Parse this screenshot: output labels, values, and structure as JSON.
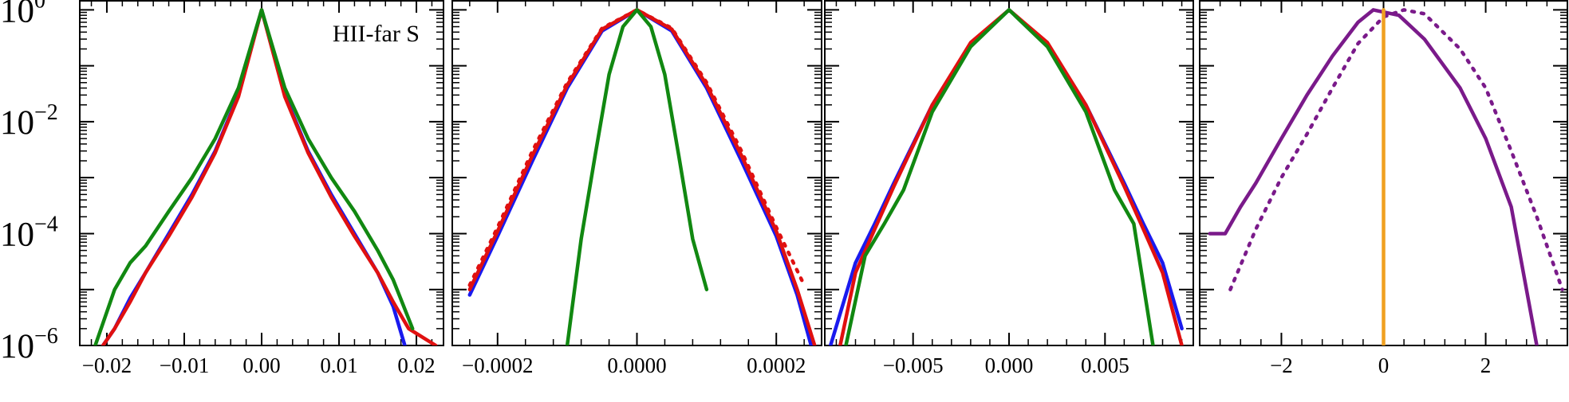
{
  "chart_data": [
    {
      "type": "line",
      "yscale": "log",
      "ylim": [
        1e-06,
        1.5
      ],
      "xlim": [
        -0.0235,
        0.0235
      ],
      "xticks": [
        -0.02,
        -0.01,
        0.0,
        0.01,
        0.02
      ],
      "xtick_labels": [
        "−0.02",
        "−0.01",
        "0.00",
        "0.01",
        "0.02"
      ],
      "ytick_labels": [
        {
          "base": "10",
          "exp": "0"
        },
        {
          "base": "10",
          "exp": "−2"
        },
        {
          "base": "10",
          "exp": "−4"
        },
        {
          "base": "10",
          "exp": "−6"
        }
      ],
      "annotation": "HII-far S",
      "series": [
        {
          "color": "#1a1aee",
          "style": "solid",
          "x": [
            -0.0205,
            -0.019,
            -0.017,
            -0.015,
            -0.012,
            -0.009,
            -0.006,
            -0.003,
            0.0,
            0.003,
            0.006,
            0.009,
            0.012,
            0.015,
            0.017,
            0.0185
          ],
          "y": [
            1e-06,
            2e-06,
            7e-06,
            2e-05,
            0.0001,
            0.0005,
            0.003,
            0.03,
            1.0,
            0.03,
            0.003,
            0.0005,
            0.0001,
            2e-05,
            5e-06,
            1e-06
          ]
        },
        {
          "color": "#e01010",
          "style": "solid",
          "x": [
            -0.0205,
            -0.019,
            -0.017,
            -0.015,
            -0.012,
            -0.009,
            -0.006,
            -0.003,
            0.0,
            0.003,
            0.006,
            0.009,
            0.012,
            0.015,
            0.017,
            0.019,
            0.0225
          ],
          "y": [
            1e-06,
            2e-06,
            6e-06,
            2e-05,
            9e-05,
            0.00045,
            0.0028,
            0.028,
            1.0,
            0.028,
            0.0028,
            0.00045,
            9e-05,
            2e-05,
            6e-06,
            2e-06,
            1e-06
          ]
        },
        {
          "color": "#118811",
          "style": "solid",
          "x": [
            -0.0215,
            -0.019,
            -0.017,
            -0.015,
            -0.012,
            -0.009,
            -0.006,
            -0.003,
            0.0,
            0.003,
            0.006,
            0.009,
            0.012,
            0.015,
            0.017,
            0.0195
          ],
          "y": [
            1e-06,
            1e-05,
            3e-05,
            6e-05,
            0.00025,
            0.001,
            0.005,
            0.04,
            1.0,
            0.04,
            0.005,
            0.001,
            0.00025,
            5e-05,
            1.5e-05,
            2e-06
          ]
        }
      ]
    },
    {
      "type": "line",
      "yscale": "log",
      "ylim": [
        1e-06,
        1.5
      ],
      "xlim": [
        -0.000265,
        0.000265
      ],
      "xticks": [
        -0.0002,
        0.0,
        0.0002
      ],
      "xtick_labels": [
        "−0.0002",
        "0.0000",
        "0.0002"
      ],
      "series": [
        {
          "color": "#1a1aee",
          "style": "solid",
          "x": [
            -0.00024,
            -0.0002,
            -0.00015,
            -0.0001,
            -5e-05,
            0.0,
            5e-05,
            0.0001,
            0.00015,
            0.0002,
            0.00023,
            0.00025
          ],
          "y": [
            8e-06,
            9e-05,
            0.002,
            0.04,
            0.42,
            1.0,
            0.42,
            0.04,
            0.002,
            9e-05,
            8e-06,
            1e-06
          ]
        },
        {
          "color": "#e01010",
          "style": "solid",
          "x": [
            -0.00024,
            -0.0002,
            -0.00015,
            -0.0001,
            -5e-05,
            0.0,
            5e-05,
            0.0001,
            0.00015,
            0.0002,
            0.00023,
            0.000255
          ],
          "y": [
            1e-05,
            0.00011,
            0.0025,
            0.045,
            0.45,
            1.0,
            0.45,
            0.045,
            0.0025,
            0.00011,
            1e-05,
            1e-06
          ]
        },
        {
          "color": "#e01010",
          "style": "dotted",
          "x": [
            -0.00024,
            -0.0002,
            -0.00015,
            -0.0001,
            -5e-05,
            0.0,
            5e-05,
            0.0001,
            0.00015,
            0.0002,
            0.00024
          ],
          "y": [
            1.2e-05,
            0.00013,
            0.003,
            0.05,
            0.47,
            1.0,
            0.47,
            0.05,
            0.003,
            0.00013,
            1.2e-05
          ]
        },
        {
          "color": "#118811",
          "style": "solid",
          "x": [
            -0.0001,
            -8e-05,
            -6e-05,
            -4e-05,
            -2e-05,
            0.0,
            2e-05,
            4e-05,
            6e-05,
            8e-05,
            0.0001
          ],
          "y": [
            1e-06,
            8e-05,
            0.0025,
            0.07,
            0.5,
            1.0,
            0.5,
            0.07,
            0.0025,
            8e-05,
            1e-05
          ]
        }
      ]
    },
    {
      "type": "line",
      "yscale": "log",
      "ylim": [
        1e-06,
        1.5
      ],
      "xlim": [
        -0.0096,
        0.0096
      ],
      "xticks": [
        -0.005,
        0.0,
        0.005
      ],
      "xtick_labels": [
        "−0.005",
        "0.000",
        "0.005"
      ],
      "series": [
        {
          "color": "#1a1aee",
          "style": "solid",
          "x": [
            -0.0093,
            -0.008,
            -0.007,
            -0.006,
            -0.004,
            -0.002,
            0.0,
            0.002,
            0.004,
            0.006,
            0.007,
            0.008,
            0.009
          ],
          "y": [
            1e-06,
            3e-05,
            0.00015,
            0.0008,
            0.02,
            0.25,
            1.0,
            0.25,
            0.02,
            0.0008,
            0.00015,
            3e-05,
            2e-06
          ]
        },
        {
          "color": "#e01010",
          "style": "solid",
          "x": [
            -0.0088,
            -0.008,
            -0.007,
            -0.006,
            -0.004,
            -0.002,
            0.0,
            0.002,
            0.004,
            0.006,
            0.007,
            0.008,
            0.009
          ],
          "y": [
            1e-06,
            2e-05,
            0.00012,
            0.0007,
            0.02,
            0.26,
            1.0,
            0.26,
            0.02,
            0.0007,
            0.00012,
            2e-05,
            1e-06
          ]
        },
        {
          "color": "#118811",
          "style": "solid",
          "x": [
            -0.0085,
            -0.0075,
            -0.0065,
            -0.0055,
            -0.004,
            -0.002,
            0.0,
            0.002,
            0.004,
            0.0055,
            0.0065,
            0.0075
          ],
          "y": [
            1e-06,
            4e-05,
            0.00015,
            0.0006,
            0.015,
            0.22,
            1.0,
            0.22,
            0.015,
            0.0006,
            0.00015,
            1e-06
          ]
        }
      ]
    },
    {
      "type": "line",
      "yscale": "log",
      "ylim": [
        1e-06,
        1.5
      ],
      "xlim": [
        -3.6,
        3.6
      ],
      "xticks": [
        -2,
        0,
        2
      ],
      "xtick_labels": [
        "−2",
        "0",
        "2"
      ],
      "series": [
        {
          "color": "#7a1a8a",
          "style": "solid",
          "x": [
            -3.4,
            -3.1,
            -2.8,
            -2.5,
            -2.0,
            -1.5,
            -1.0,
            -0.5,
            -0.2,
            0.3,
            0.8,
            1.5,
            2.0,
            2.5,
            3.0
          ],
          "y": [
            0.0001,
            0.0001,
            0.0003,
            0.0008,
            0.005,
            0.03,
            0.15,
            0.6,
            1.0,
            0.8,
            0.3,
            0.04,
            0.005,
            0.0003,
            1e-06
          ]
        },
        {
          "color": "#7a1a8a",
          "style": "dotted",
          "x": [
            -3.0,
            -2.5,
            -2.0,
            -1.5,
            -1.0,
            -0.5,
            0.0,
            0.4,
            0.8,
            1.5,
            2.0,
            2.5,
            3.0,
            3.5
          ],
          "y": [
            1e-05,
            0.00012,
            0.001,
            0.006,
            0.04,
            0.25,
            0.75,
            1.0,
            0.85,
            0.2,
            0.04,
            0.003,
            0.0002,
            1e-05
          ]
        },
        {
          "color": "#f0a020",
          "style": "solid",
          "x": [
            0.0,
            0.0
          ],
          "y": [
            1e-06,
            1.0
          ]
        }
      ]
    }
  ]
}
